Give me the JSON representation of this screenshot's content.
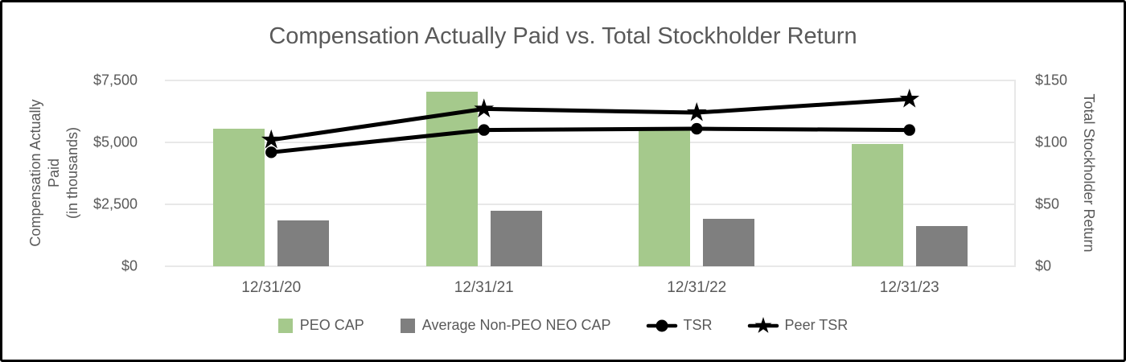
{
  "chart_data": {
    "type": "combo-bar-line",
    "title": "Compensation Actually Paid vs. Total Stockholder Return",
    "categories": [
      "12/31/20",
      "12/31/21",
      "12/31/22",
      "12/31/23"
    ],
    "series": [
      {
        "name": "PEO CAP",
        "type": "bar",
        "axis": "left",
        "color": "#a5c98c",
        "values": [
          5550,
          7050,
          5500,
          4950
        ]
      },
      {
        "name": "Average Non-PEO NEO CAP",
        "type": "bar",
        "axis": "left",
        "color": "#7f7f7f",
        "values": [
          1850,
          2230,
          1930,
          1610
        ]
      },
      {
        "name": "TSR",
        "type": "line",
        "marker": "circle",
        "axis": "right",
        "color": "#000000",
        "values": [
          92,
          110,
          111,
          110
        ]
      },
      {
        "name": "Peer TSR",
        "type": "line",
        "marker": "star",
        "axis": "right",
        "color": "#000000",
        "values": [
          102,
          127,
          124,
          135
        ]
      }
    ],
    "left_axis": {
      "title_lines": [
        "Compensation Actually",
        "Paid",
        "(in thousands)"
      ],
      "min": 0,
      "max": 7500,
      "ticks": [
        {
          "value": 0,
          "label": "$0"
        },
        {
          "value": 2500,
          "label": "$2,500"
        },
        {
          "value": 5000,
          "label": "$5,000"
        },
        {
          "value": 7500,
          "label": "$7,500"
        }
      ]
    },
    "right_axis": {
      "title": "Total Stockholder Return",
      "min": 0,
      "max": 150,
      "ticks": [
        {
          "value": 0,
          "label": "$0"
        },
        {
          "value": 50,
          "label": "$50"
        },
        {
          "value": 100,
          "label": "$100"
        },
        {
          "value": 150,
          "label": "$150"
        }
      ]
    },
    "grid": true,
    "legend_position": "bottom",
    "colors": {
      "grid": "#e8e8e8",
      "text": "#595959",
      "border": "#000000",
      "background": "#ffffff"
    }
  }
}
